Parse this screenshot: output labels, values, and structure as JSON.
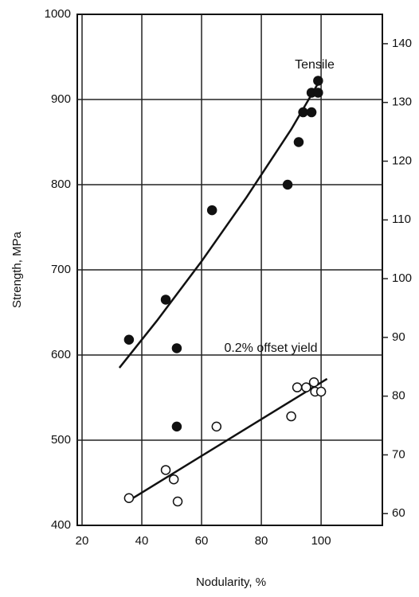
{
  "chart_data": {
    "type": "scatter",
    "xlabel": "Nodularity, %",
    "ylabel": "Strength, MPa",
    "xlim": [
      18.4,
      120.5
    ],
    "xticks": [
      20,
      40,
      60,
      80,
      100
    ],
    "ylim": [
      400,
      1000
    ],
    "yticks": [
      400,
      500,
      600,
      700,
      800,
      900,
      1000
    ],
    "y2lim": [
      58,
      145
    ],
    "y2ticks": [
      60,
      70,
      80,
      90,
      100,
      110,
      120,
      130,
      140
    ],
    "grid": true,
    "series": [
      {
        "name": "Tensile",
        "color": "#111111",
        "filled": true,
        "x": [
          35.7,
          48,
          51.7,
          63.5,
          88.8,
          92.5,
          94,
          96.8,
          96.8,
          99,
          99,
          51.7
        ],
        "values": [
          618,
          665,
          608,
          770,
          800,
          850,
          885,
          885,
          908,
          908,
          922,
          516
        ],
        "fit": {
          "x": [
            32.5,
            45,
            60,
            75,
            90,
            100
          ],
          "values": [
            585,
            640,
            710,
            785,
            865,
            925
          ]
        }
      },
      {
        "name": "0.2% offset yield",
        "color": "#111111",
        "filled": false,
        "x": [
          35.7,
          48,
          50.7,
          52,
          65,
          90,
          92,
          95,
          97.6,
          98,
          100
        ],
        "values": [
          432,
          465,
          454,
          428,
          516,
          528,
          562,
          562,
          568,
          557,
          557
        ],
        "fit": {
          "x": [
            37,
            102
          ],
          "values": [
            432,
            572
          ]
        }
      }
    ]
  }
}
